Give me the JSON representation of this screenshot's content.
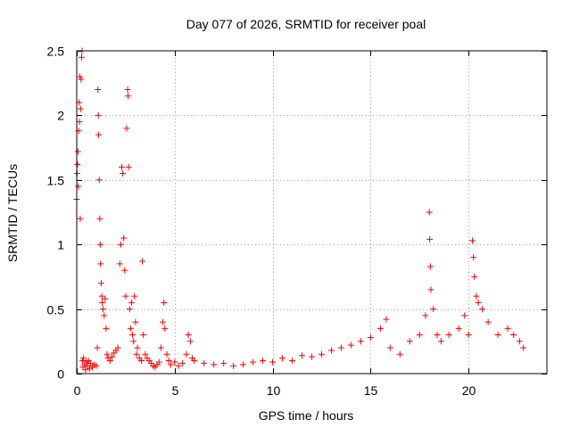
{
  "chart_data": {
    "type": "scatter",
    "title": "Day 077 of 2026, SRMTID for receiver poal",
    "xlabel": "GPS time / hours",
    "ylabel": "SRMTID / TECUs",
    "xlim": [
      0,
      24
    ],
    "ylim": [
      0,
      2.5
    ],
    "grid": true,
    "marker": "plus",
    "color": "#ff0000",
    "x_ticks": [
      0,
      5,
      10,
      15,
      20
    ],
    "x_tick_labels": [
      "0",
      "5",
      "10",
      "15",
      "20"
    ],
    "y_ticks": [
      0,
      0.5,
      1,
      1.5,
      2,
      2.5
    ],
    "y_tick_labels": [
      "0",
      "0.5",
      "1",
      "1.5",
      "2",
      "2.5"
    ],
    "series": [
      {
        "name": "SRMTID",
        "points": [
          [
            0.0,
            1.35
          ],
          [
            0.02,
            1.55
          ],
          [
            0.04,
            1.62
          ],
          [
            0.06,
            1.72
          ],
          [
            0.08,
            1.45
          ],
          [
            0.1,
            1.88
          ],
          [
            0.12,
            2.1
          ],
          [
            0.14,
            1.95
          ],
          [
            0.16,
            2.3
          ],
          [
            0.18,
            1.2
          ],
          [
            0.2,
            2.05
          ],
          [
            0.22,
            2.28
          ],
          [
            0.25,
            2.45
          ],
          [
            0.27,
            2.5
          ],
          [
            0.3,
            0.1
          ],
          [
            0.32,
            0.05
          ],
          [
            0.35,
            0.12
          ],
          [
            0.4,
            0.07
          ],
          [
            0.45,
            0.03
          ],
          [
            0.5,
            0.09
          ],
          [
            0.55,
            0.06
          ],
          [
            0.6,
            0.1
          ],
          [
            0.65,
            0.04
          ],
          [
            0.7,
            0.08
          ],
          [
            0.8,
            0.05
          ],
          [
            0.9,
            0.07
          ],
          [
            1.0,
            0.06
          ],
          [
            1.05,
            0.2
          ],
          [
            1.08,
            2.2
          ],
          [
            1.1,
            2.0
          ],
          [
            1.12,
            1.85
          ],
          [
            1.15,
            1.5
          ],
          [
            1.18,
            1.2
          ],
          [
            1.2,
            1.0
          ],
          [
            1.22,
            0.85
          ],
          [
            1.25,
            0.7
          ],
          [
            1.28,
            0.6
          ],
          [
            1.3,
            0.55
          ],
          [
            1.35,
            0.5
          ],
          [
            1.4,
            0.45
          ],
          [
            1.45,
            0.58
          ],
          [
            1.5,
            0.35
          ],
          [
            1.55,
            0.15
          ],
          [
            1.6,
            0.12
          ],
          [
            1.7,
            0.1
          ],
          [
            1.8,
            0.13
          ],
          [
            1.9,
            0.16
          ],
          [
            2.0,
            0.18
          ],
          [
            2.1,
            0.2
          ],
          [
            2.2,
            0.85
          ],
          [
            2.25,
            1.0
          ],
          [
            2.3,
            1.6
          ],
          [
            2.35,
            1.55
          ],
          [
            2.4,
            1.05
          ],
          [
            2.45,
            0.8
          ],
          [
            2.5,
            0.6
          ],
          [
            2.55,
            1.9
          ],
          [
            2.6,
            2.2
          ],
          [
            2.62,
            2.15
          ],
          [
            2.65,
            1.6
          ],
          [
            2.7,
            0.5
          ],
          [
            2.75,
            0.35
          ],
          [
            2.8,
            0.55
          ],
          [
            2.85,
            0.3
          ],
          [
            2.9,
            0.25
          ],
          [
            2.95,
            0.6
          ],
          [
            3.0,
            0.4
          ],
          [
            3.05,
            0.15
          ],
          [
            3.1,
            0.2
          ],
          [
            3.2,
            0.12
          ],
          [
            3.3,
            0.1
          ],
          [
            3.35,
            0.87
          ],
          [
            3.4,
            0.3
          ],
          [
            3.5,
            0.15
          ],
          [
            3.6,
            0.12
          ],
          [
            3.7,
            0.1
          ],
          [
            3.8,
            0.08
          ],
          [
            3.9,
            0.06
          ],
          [
            4.0,
            0.05
          ],
          [
            4.1,
            0.07
          ],
          [
            4.2,
            0.09
          ],
          [
            4.3,
            0.2
          ],
          [
            4.4,
            0.4
          ],
          [
            4.45,
            0.55
          ],
          [
            4.5,
            0.35
          ],
          [
            4.6,
            0.15
          ],
          [
            4.7,
            0.1
          ],
          [
            4.8,
            0.07
          ],
          [
            5.0,
            0.09
          ],
          [
            5.2,
            0.06
          ],
          [
            5.4,
            0.08
          ],
          [
            5.6,
            0.15
          ],
          [
            5.7,
            0.3
          ],
          [
            5.8,
            0.25
          ],
          [
            5.9,
            0.12
          ],
          [
            6.0,
            0.1
          ],
          [
            6.5,
            0.08
          ],
          [
            7.0,
            0.07
          ],
          [
            7.5,
            0.08
          ],
          [
            8.0,
            0.06
          ],
          [
            8.5,
            0.07
          ],
          [
            9.0,
            0.09
          ],
          [
            9.5,
            0.1
          ],
          [
            10.0,
            0.09
          ],
          [
            10.5,
            0.12
          ],
          [
            11.0,
            0.1
          ],
          [
            11.5,
            0.14
          ],
          [
            12.0,
            0.13
          ],
          [
            12.5,
            0.15
          ],
          [
            13.0,
            0.18
          ],
          [
            13.5,
            0.2
          ],
          [
            14.0,
            0.22
          ],
          [
            14.5,
            0.25
          ],
          [
            15.0,
            0.28
          ],
          [
            15.5,
            0.35
          ],
          [
            15.8,
            0.42
          ],
          [
            16.0,
            0.2
          ],
          [
            16.5,
            0.15
          ],
          [
            17.0,
            0.25
          ],
          [
            17.5,
            0.3
          ],
          [
            17.8,
            0.45
          ],
          [
            18.0,
            1.25
          ],
          [
            18.02,
            1.04
          ],
          [
            18.05,
            0.83
          ],
          [
            18.08,
            0.65
          ],
          [
            18.2,
            0.5
          ],
          [
            18.4,
            0.3
          ],
          [
            18.6,
            0.25
          ],
          [
            19.0,
            0.3
          ],
          [
            19.5,
            0.35
          ],
          [
            19.8,
            0.45
          ],
          [
            20.0,
            0.3
          ],
          [
            20.2,
            1.03
          ],
          [
            20.25,
            0.9
          ],
          [
            20.3,
            0.75
          ],
          [
            20.4,
            0.6
          ],
          [
            20.5,
            0.55
          ],
          [
            20.7,
            0.5
          ],
          [
            21.0,
            0.4
          ],
          [
            21.5,
            0.3
          ],
          [
            22.0,
            0.35
          ],
          [
            22.3,
            0.3
          ],
          [
            22.6,
            0.25
          ],
          [
            22.8,
            0.2
          ]
        ]
      }
    ]
  }
}
